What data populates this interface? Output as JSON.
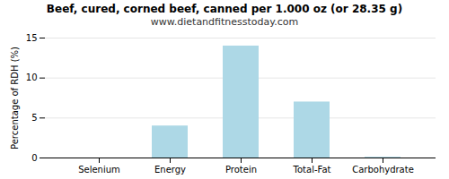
{
  "chart_data": {
    "type": "bar",
    "title": "Beef, cured, corned beef, canned per 1.000 oz (or 28.35 g)",
    "subtitle": "www.dietandfitnesstoday.com",
    "categories": [
      "Selenium",
      "Energy",
      "Protein",
      "Total-Fat",
      "Carbohydrate"
    ],
    "values": [
      0.0,
      4.0,
      14.0,
      7.0,
      0.1
    ],
    "color": "#add8e6",
    "ylabel": "Percentage of RDH (%)",
    "ylim": [
      0,
      15
    ],
    "yticks": [
      0,
      5,
      10,
      15
    ],
    "grid": true
  }
}
